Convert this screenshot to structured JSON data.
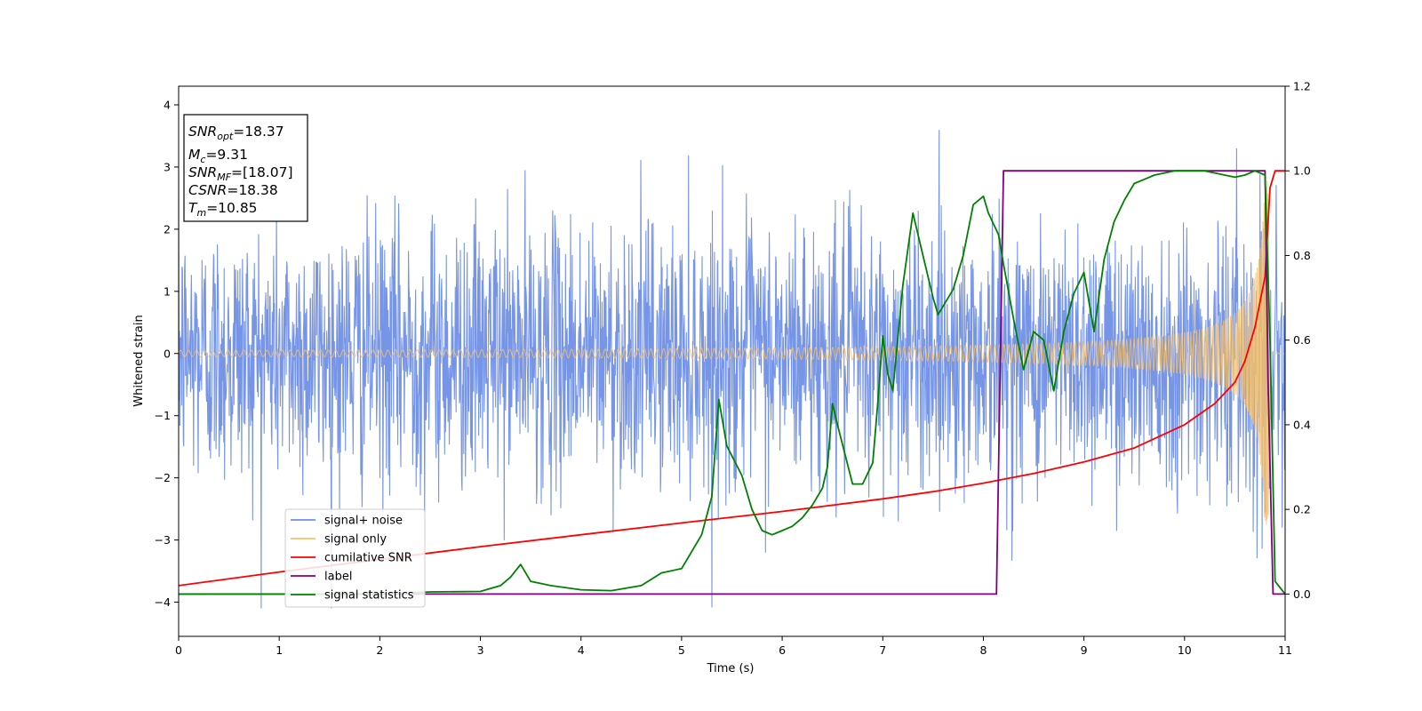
{
  "chart_data": {
    "type": "line",
    "title": "",
    "xlabel": "Time (s)",
    "ylabel": "Whitened strain",
    "xlim": [
      0,
      11
    ],
    "ylim_left": [
      -4.55,
      4.3
    ],
    "ylim_right": [
      -0.1,
      1.2
    ],
    "x_ticks": [
      0,
      1,
      2,
      3,
      4,
      5,
      6,
      7,
      8,
      9,
      10,
      11
    ],
    "y_ticks_left": [
      -4,
      -3,
      -2,
      -1,
      0,
      1,
      2,
      3,
      4
    ],
    "y_ticks_left_labels": [
      "−4",
      "−3",
      "−2",
      "−1",
      "0",
      "1",
      "2",
      "3",
      "4"
    ],
    "y_ticks_right": [
      0.0,
      0.2,
      0.4,
      0.6,
      0.8,
      1.0,
      1.2
    ],
    "y_ticks_right_labels": [
      "0.0",
      "0.2",
      "0.4",
      "0.6",
      "0.8",
      "1.0",
      "1.2"
    ],
    "grid": false,
    "legend_position": "lower-left",
    "annotation": {
      "lines": [
        {
          "sym": "SNR",
          "sub": "opt",
          "val": "=18.37"
        },
        {
          "sym": "M",
          "sub": "c",
          "val": "=9.31"
        },
        {
          "sym": "SNR",
          "sub": "MF",
          "val": "=[18.07]"
        },
        {
          "sym": "CSNR",
          "sub": "",
          "val": "=18.38"
        },
        {
          "sym": "T",
          "sub": "m",
          "val": "=10.85"
        }
      ]
    },
    "series": [
      {
        "name": "signal+ noise",
        "axis": "left",
        "color": "#6f8fe6",
        "kind": "noisy",
        "noise_sigma": 1.0,
        "range": [
          -4.1,
          3.9
        ]
      },
      {
        "name": "signal only",
        "axis": "left",
        "color": "#f5c06a",
        "kind": "chirp",
        "t_merge": 10.85,
        "amp_start": 0.05,
        "amp_peak": 2.8
      },
      {
        "name": "cumilative SNR",
        "axis": "right",
        "color": "#ff0000",
        "x": [
          0,
          1,
          2,
          3,
          4,
          5,
          6,
          7,
          7.5,
          8,
          8.5,
          9,
          9.5,
          10,
          10.3,
          10.5,
          10.6,
          10.7,
          10.8,
          10.85,
          10.9,
          11
        ],
        "y": [
          0.02,
          0.052,
          0.082,
          0.112,
          0.14,
          0.168,
          0.195,
          0.225,
          0.242,
          0.262,
          0.285,
          0.312,
          0.345,
          0.4,
          0.45,
          0.5,
          0.55,
          0.63,
          0.75,
          0.96,
          1.0,
          1.0
        ]
      },
      {
        "name": "label",
        "axis": "right",
        "color": "#800080",
        "x": [
          0,
          8.13,
          8.2,
          10.8,
          10.83,
          10.88,
          11
        ],
        "y": [
          0.0,
          0.0,
          1.0,
          1.0,
          0.5,
          0.0,
          0.0
        ]
      },
      {
        "name": "signal statistics",
        "axis": "right",
        "color": "#008000",
        "x": [
          0,
          0.5,
          1,
          1.5,
          2,
          2.5,
          3,
          3.2,
          3.3,
          3.4,
          3.5,
          3.7,
          4,
          4.3,
          4.6,
          4.8,
          5,
          5.1,
          5.2,
          5.3,
          5.37,
          5.45,
          5.6,
          5.7,
          5.8,
          5.9,
          6,
          6.1,
          6.2,
          6.3,
          6.4,
          6.45,
          6.5,
          6.55,
          6.7,
          6.8,
          6.9,
          6.95,
          7.0,
          7.05,
          7.1,
          7.2,
          7.3,
          7.4,
          7.5,
          7.55,
          7.7,
          7.8,
          7.9,
          8.0,
          8.05,
          8.15,
          8.2,
          8.3,
          8.4,
          8.5,
          8.6,
          8.7,
          8.8,
          8.9,
          9.0,
          9.1,
          9.2,
          9.3,
          9.4,
          9.5,
          9.6,
          9.7,
          9.8,
          9.9,
          10.0,
          10.2,
          10.4,
          10.5,
          10.6,
          10.7,
          10.8,
          10.85,
          10.9,
          11
        ],
        "y": [
          0.0,
          0.0,
          0.0,
          0.0,
          0.0,
          0.005,
          0.006,
          0.02,
          0.04,
          0.07,
          0.03,
          0.02,
          0.01,
          0.008,
          0.02,
          0.05,
          0.06,
          0.1,
          0.14,
          0.23,
          0.46,
          0.35,
          0.28,
          0.2,
          0.15,
          0.14,
          0.15,
          0.16,
          0.18,
          0.21,
          0.25,
          0.3,
          0.45,
          0.4,
          0.26,
          0.26,
          0.31,
          0.45,
          0.61,
          0.52,
          0.48,
          0.73,
          0.9,
          0.8,
          0.7,
          0.66,
          0.72,
          0.8,
          0.92,
          0.94,
          0.9,
          0.85,
          0.78,
          0.65,
          0.53,
          0.62,
          0.6,
          0.48,
          0.62,
          0.71,
          0.76,
          0.62,
          0.79,
          0.88,
          0.93,
          0.97,
          0.98,
          0.99,
          0.995,
          1.0,
          1.0,
          1.0,
          0.99,
          0.985,
          0.99,
          1.0,
          0.99,
          0.6,
          0.03,
          0.0
        ]
      }
    ]
  }
}
